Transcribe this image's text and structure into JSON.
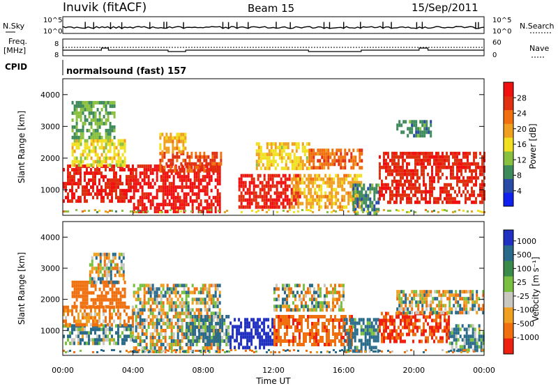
{
  "header": {
    "station": "Inuvik (fitACF)",
    "beam": "Beam 15",
    "date": "15/Sep/2011"
  },
  "status_panels": {
    "nsky": {
      "label": "N.Sky",
      "ticks_left": [
        "10^5",
        "10^0"
      ],
      "ticks_right": [
        "10^5",
        "10^0"
      ],
      "right_label": "N.Search"
    },
    "freq": {
      "label_line1": "Freq.",
      "label_line2": "[MHz]",
      "ticks_left": [
        "8",
        "8"
      ],
      "ticks_right": [
        "60",
        "0"
      ],
      "right_label": "Nave"
    },
    "cpid": {
      "label": "CPID",
      "value": "normalsound (fast) 157"
    }
  },
  "axes": {
    "ylabel": "Slant Range [km]",
    "yticks": [
      "1000",
      "2000",
      "3000",
      "4000"
    ],
    "xticks": [
      "00:00",
      "04:00",
      "08:00",
      "12:00",
      "16:00",
      "20:00",
      "00:00"
    ],
    "xlabel": "Time UT"
  },
  "colorbars": {
    "power": {
      "label": "Power [dB]",
      "ticks": [
        "4",
        "8",
        "12",
        "16",
        "20",
        "24",
        "28"
      ],
      "colors": [
        "#1020f0",
        "#2a4aa8",
        "#3f8a5a",
        "#8ac040",
        "#f0e020",
        "#f0a020",
        "#f07010",
        "#e03010",
        "#f01010"
      ]
    },
    "velocity": {
      "label": "Velocity [m s⁻¹]",
      "ticks": [
        "1000",
        "500",
        "100",
        "25",
        "-25",
        "-100",
        "-500",
        "-1000"
      ],
      "colors": [
        "#2030c0",
        "#2a6a8a",
        "#3a8a4a",
        "#7ac040",
        "#c8c8c0",
        "#f0a020",
        "#f07010",
        "#f02010"
      ]
    }
  },
  "chart_data": [
    {
      "type": "heatmap",
      "title": "Power",
      "xlabel": "Time UT",
      "ylabel": "Slant Range [km]",
      "xlim": [
        0,
        24
      ],
      "ylim": [
        200,
        4500
      ],
      "colorbar_range": [
        0,
        30
      ],
      "regions": [
        {
          "t0": 0.0,
          "t1": 4.0,
          "r0": 700,
          "r1": 1800,
          "value": 27
        },
        {
          "t0": 0.5,
          "t1": 3.5,
          "r0": 1800,
          "r1": 2600,
          "value": 15
        },
        {
          "t0": 0.5,
          "t1": 3.0,
          "r0": 2600,
          "r1": 3800,
          "value": 10
        },
        {
          "t0": 4.0,
          "t1": 9.0,
          "r0": 300,
          "r1": 1800,
          "value": 28
        },
        {
          "t0": 5.5,
          "t1": 9.0,
          "r0": 1600,
          "r1": 2200,
          "value": 24
        },
        {
          "t0": 5.5,
          "t1": 7.0,
          "r0": 2200,
          "r1": 2800,
          "value": 18
        },
        {
          "t0": 10.0,
          "t1": 13.5,
          "r0": 500,
          "r1": 1500,
          "value": 27
        },
        {
          "t0": 11.0,
          "t1": 14.0,
          "r0": 1700,
          "r1": 2500,
          "value": 16
        },
        {
          "t0": 14.0,
          "t1": 17.0,
          "r0": 1700,
          "r1": 2300,
          "value": 22
        },
        {
          "t0": 13.0,
          "t1": 17.0,
          "r0": 500,
          "r1": 1500,
          "value": 18
        },
        {
          "t0": 16.5,
          "t1": 18.0,
          "r0": 300,
          "r1": 1200,
          "value": 8
        },
        {
          "t0": 18.0,
          "t1": 24.0,
          "r0": 600,
          "r1": 2200,
          "value": 26
        },
        {
          "t0": 19.0,
          "t1": 21.0,
          "r0": 2700,
          "r1": 3200,
          "value": 8
        }
      ]
    },
    {
      "type": "heatmap",
      "title": "Velocity",
      "xlabel": "Time UT",
      "ylabel": "Slant Range [km]",
      "xlim": [
        0,
        24
      ],
      "ylim": [
        200,
        4500
      ],
      "colorbar_range": [
        -1000,
        1000
      ],
      "regions": [
        {
          "t0": 0.0,
          "t1": 4.0,
          "r0": 600,
          "r1": 1200,
          "value": 120
        },
        {
          "t0": 0.0,
          "t1": 4.0,
          "r0": 1200,
          "r1": 1800,
          "value": -150
        },
        {
          "t0": 0.5,
          "t1": 3.5,
          "r0": 1800,
          "r1": 2600,
          "value": -300
        },
        {
          "t0": 1.5,
          "t1": 3.5,
          "r0": 2600,
          "r1": 3500,
          "value": 0
        },
        {
          "t0": 4.0,
          "t1": 9.0,
          "r0": 300,
          "r1": 1500,
          "value": 0
        },
        {
          "t0": 4.0,
          "t1": 9.0,
          "r0": 1500,
          "r1": 2500,
          "value": 0
        },
        {
          "t0": 7.0,
          "t1": 9.5,
          "r0": 500,
          "r1": 1500,
          "value": 150
        },
        {
          "t0": 9.5,
          "t1": 12.0,
          "r0": 500,
          "r1": 1400,
          "value": 800
        },
        {
          "t0": 12.0,
          "t1": 16.5,
          "r0": 500,
          "r1": 1500,
          "value": -400
        },
        {
          "t0": 12.0,
          "t1": 16.0,
          "r0": 1700,
          "r1": 2500,
          "value": 0
        },
        {
          "t0": 16.0,
          "t1": 18.0,
          "r0": 300,
          "r1": 1400,
          "value": 200
        },
        {
          "t0": 18.0,
          "t1": 22.0,
          "r0": 600,
          "r1": 1600,
          "value": -500
        },
        {
          "t0": 19.0,
          "t1": 24.0,
          "r0": 1600,
          "r1": 2300,
          "value": 0
        },
        {
          "t0": 22.0,
          "t1": 24.0,
          "r0": 400,
          "r1": 1200,
          "value": 150
        }
      ]
    }
  ]
}
